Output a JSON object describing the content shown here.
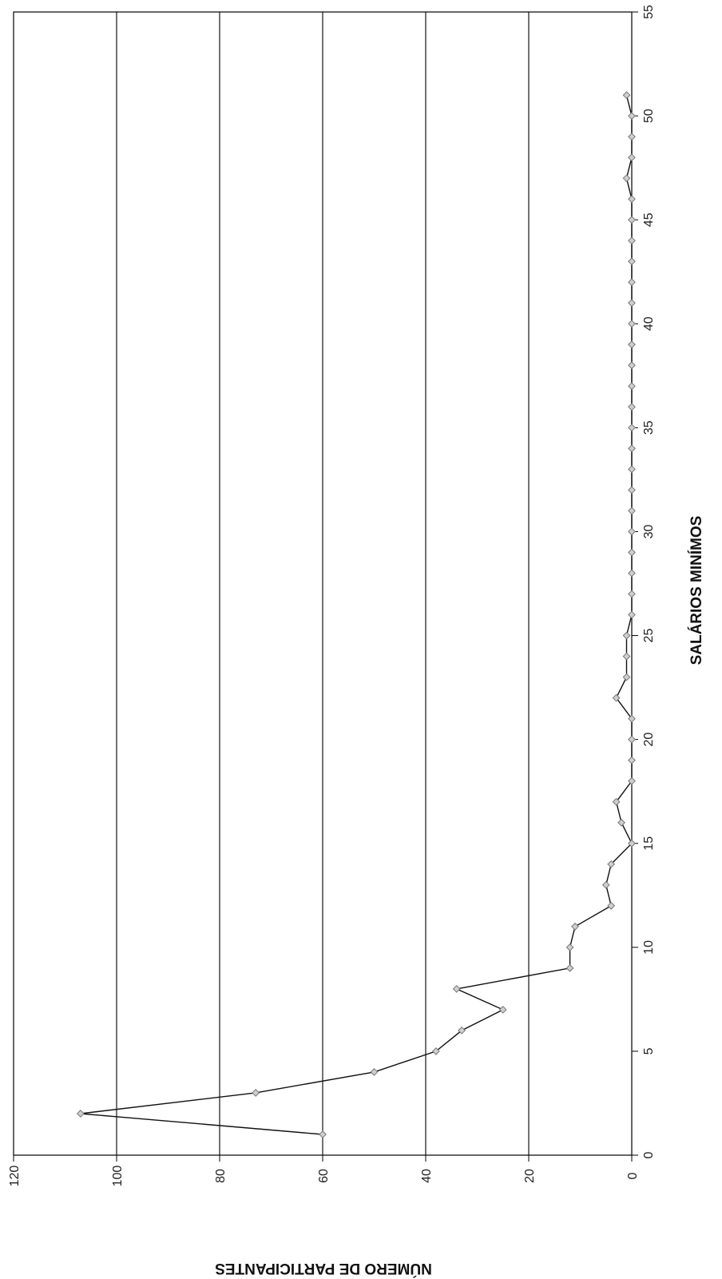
{
  "chart_data": {
    "type": "line",
    "orientation": "rotated-90-clockwise",
    "title": "",
    "xlabel": "SALÁRIOS MINÍMOS",
    "ylabel": "NÚMERO DE PARTICIPANTES",
    "xlim": [
      0,
      55
    ],
    "ylim": [
      0,
      120
    ],
    "x_ticks": [
      0,
      5,
      10,
      15,
      20,
      25,
      30,
      35,
      40,
      45,
      50,
      55
    ],
    "y_ticks": [
      0,
      20,
      40,
      60,
      80,
      100,
      120
    ],
    "grid": "horizontal-major",
    "legend": "none",
    "marker": "diamond",
    "colors": {
      "line": "#111111",
      "marker_fill": "#cfcfcf",
      "marker_stroke": "#777777",
      "grid": "#000000"
    },
    "series": [
      {
        "x": [
          1,
          2,
          3,
          4,
          5,
          6,
          7,
          8,
          9,
          10,
          11,
          12,
          13,
          14,
          15,
          16,
          17,
          18,
          19,
          20,
          21,
          22,
          23,
          24,
          25,
          26,
          27,
          28,
          29,
          30,
          31,
          32,
          33,
          34,
          35,
          36,
          37,
          38,
          39,
          40,
          41,
          42,
          43,
          44,
          45,
          46,
          47,
          48,
          49,
          50,
          51
        ],
        "values": [
          60,
          107,
          73,
          50,
          38,
          33,
          25,
          34,
          12,
          12,
          11,
          4,
          5,
          4,
          0,
          2,
          3,
          0,
          0,
          0,
          0,
          3,
          1,
          1,
          1,
          0,
          0,
          0,
          0,
          0,
          0,
          0,
          0,
          0,
          0,
          0,
          0,
          0,
          0,
          0,
          0,
          0,
          0,
          0,
          0,
          0,
          1,
          0,
          0,
          0,
          1
        ]
      }
    ]
  }
}
